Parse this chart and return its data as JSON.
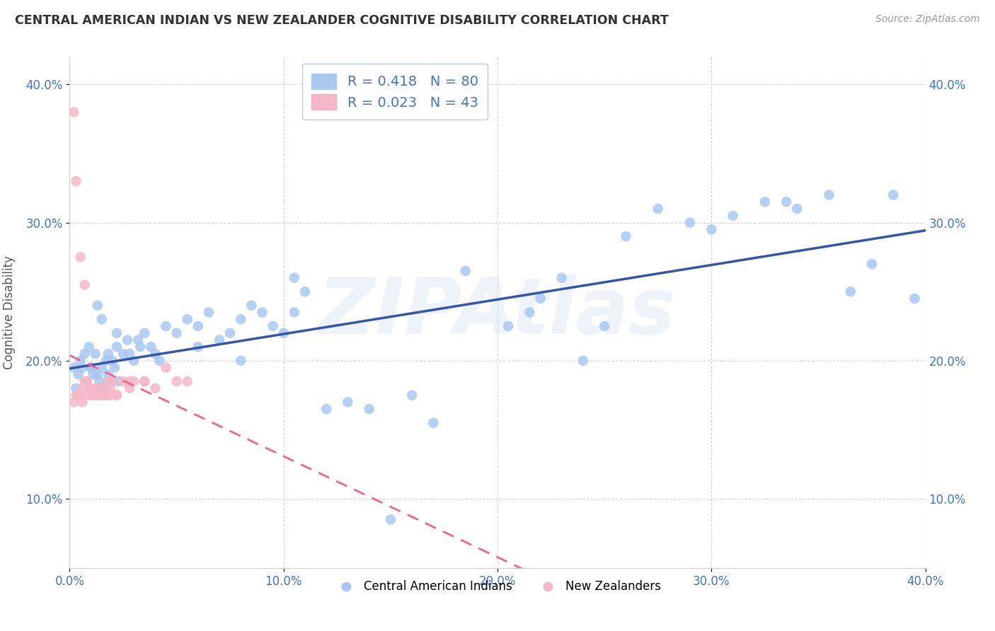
{
  "title": "CENTRAL AMERICAN INDIAN VS NEW ZEALANDER COGNITIVE DISABILITY CORRELATION CHART",
  "source": "Source: ZipAtlas.com",
  "ylabel": "Cognitive Disability",
  "legend_label1": "R = 0.418   N = 80",
  "legend_label2": "R = 0.023   N = 43",
  "color_blue": "#A8C8F0",
  "color_pink": "#F5B8C8",
  "color_blue_line": "#3355AA",
  "color_pink_line": "#EE6688",
  "watermark": "ZIPAtlas",
  "xlim": [
    0.0,
    40.0
  ],
  "ylim": [
    5.0,
    42.0
  ],
  "yticks": [
    10.0,
    20.0,
    30.0,
    40.0
  ],
  "xticks": [
    0.0,
    10.0,
    20.0,
    30.0,
    40.0
  ],
  "blue_x": [
    0.2,
    0.3,
    0.4,
    0.5,
    0.6,
    0.7,
    0.8,
    0.9,
    1.0,
    1.1,
    1.2,
    1.3,
    1.4,
    1.5,
    1.6,
    1.7,
    1.8,
    1.9,
    2.0,
    2.1,
    2.2,
    2.3,
    2.5,
    2.7,
    2.8,
    3.0,
    3.2,
    3.5,
    3.8,
    4.0,
    4.5,
    5.0,
    5.5,
    6.0,
    6.5,
    7.0,
    7.5,
    8.0,
    8.5,
    9.0,
    9.5,
    10.0,
    10.5,
    11.0,
    12.0,
    13.0,
    14.0,
    15.0,
    16.0,
    17.0,
    18.5,
    20.5,
    21.5,
    22.0,
    23.0,
    24.0,
    25.0,
    26.0,
    27.5,
    29.0,
    30.0,
    31.0,
    32.5,
    33.5,
    34.0,
    35.5,
    36.5,
    37.5,
    38.5,
    39.5,
    1.3,
    1.5,
    2.2,
    3.3,
    4.2,
    6.0,
    8.0,
    10.5,
    1.0,
    1.8
  ],
  "blue_y": [
    19.5,
    18.0,
    19.0,
    20.0,
    19.5,
    20.5,
    18.5,
    21.0,
    19.5,
    19.0,
    20.5,
    19.0,
    18.5,
    19.5,
    18.0,
    20.0,
    19.0,
    18.5,
    20.0,
    19.5,
    21.0,
    18.5,
    20.5,
    21.5,
    20.5,
    20.0,
    21.5,
    22.0,
    21.0,
    20.5,
    22.5,
    22.0,
    23.0,
    22.5,
    23.5,
    21.5,
    22.0,
    23.0,
    24.0,
    23.5,
    22.5,
    22.0,
    23.5,
    25.0,
    16.5,
    17.0,
    16.5,
    8.5,
    17.5,
    15.5,
    26.5,
    22.5,
    23.5,
    24.5,
    26.0,
    20.0,
    22.5,
    29.0,
    31.0,
    30.0,
    29.5,
    30.5,
    31.5,
    31.5,
    31.0,
    32.0,
    25.0,
    27.0,
    32.0,
    24.5,
    24.0,
    23.0,
    22.0,
    21.0,
    20.0,
    21.0,
    20.0,
    26.0,
    19.5,
    20.5
  ],
  "pink_x": [
    0.2,
    0.3,
    0.4,
    0.5,
    0.6,
    0.7,
    0.8,
    0.9,
    1.0,
    1.1,
    1.2,
    1.3,
    1.4,
    1.5,
    1.6,
    1.7,
    1.8,
    1.9,
    2.0,
    2.2,
    2.5,
    2.8,
    3.0,
    3.5,
    4.0,
    4.5,
    5.0,
    0.3,
    0.5,
    0.7,
    0.9,
    1.1,
    1.3,
    1.5,
    1.7,
    1.9,
    2.2,
    2.8,
    3.5,
    0.2,
    0.4,
    0.6,
    5.5
  ],
  "pink_y": [
    38.0,
    33.0,
    17.5,
    17.5,
    18.0,
    18.5,
    18.5,
    18.0,
    18.0,
    17.5,
    18.0,
    17.5,
    18.0,
    17.5,
    17.5,
    18.0,
    18.5,
    18.0,
    18.5,
    17.5,
    18.5,
    18.5,
    18.5,
    18.5,
    18.0,
    19.5,
    18.5,
    17.5,
    27.5,
    25.5,
    17.5,
    17.5,
    17.5,
    17.5,
    17.5,
    17.5,
    17.5,
    18.0,
    18.5,
    17.0,
    17.5,
    17.0,
    18.5
  ]
}
